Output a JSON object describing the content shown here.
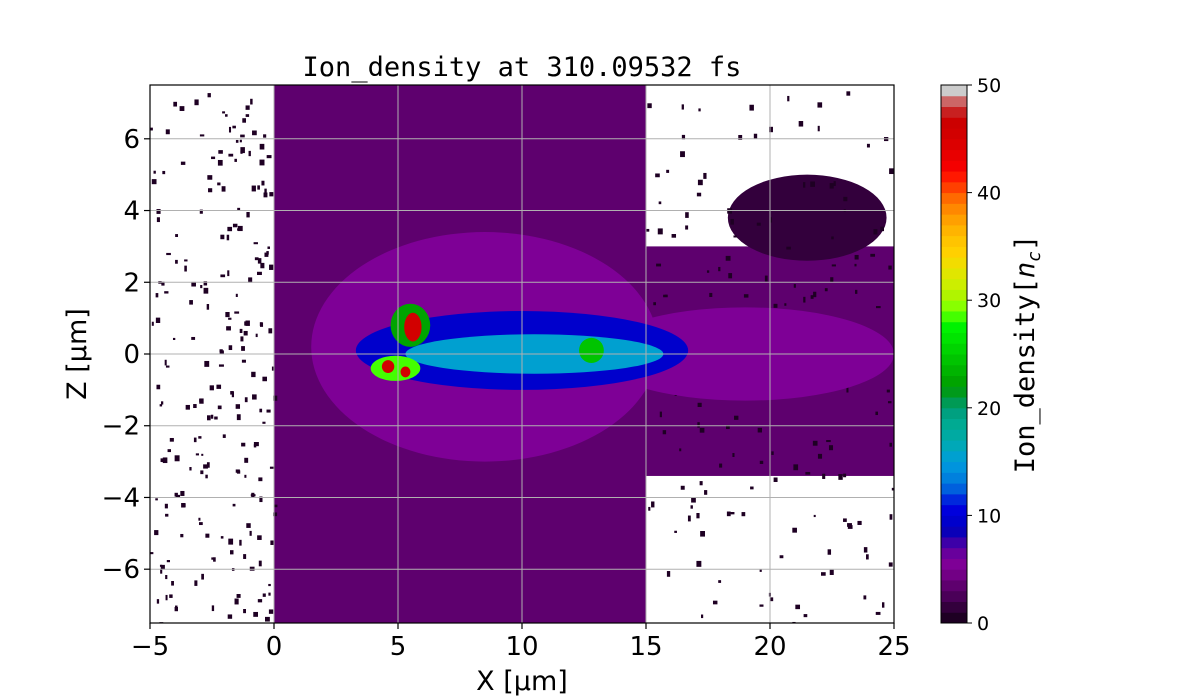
{
  "chart_data": {
    "type": "heatmap",
    "title": "Ion_density at 310.09532 fs",
    "xlabel": "X [μm]",
    "ylabel": "Z [μm]",
    "xlim": [
      -5,
      25
    ],
    "ylim": [
      -7.5,
      7.5
    ],
    "x_ticks": [
      -5,
      0,
      5,
      10,
      15,
      20,
      25
    ],
    "x_tick_labels": [
      "−5",
      "0",
      "5",
      "10",
      "15",
      "20",
      "25"
    ],
    "y_ticks": [
      -6,
      -4,
      -2,
      0,
      2,
      4,
      6
    ],
    "y_tick_labels": [
      "−6",
      "−4",
      "−2",
      "0",
      "2",
      "4",
      "6"
    ],
    "grid": true,
    "colorbar": {
      "label": "Ion_density[n_c]",
      "range": [
        0,
        50
      ],
      "ticks": [
        0,
        10,
        20,
        30,
        40,
        50
      ],
      "tick_labels": [
        "0",
        "10",
        "20",
        "30",
        "40",
        "50"
      ],
      "levels": [
        {
          "min": 0,
          "max": 1,
          "color": "#1e0023"
        },
        {
          "min": 1,
          "max": 2,
          "color": "#33003c"
        },
        {
          "min": 2,
          "max": 3,
          "color": "#4a0058"
        },
        {
          "min": 3,
          "max": 4,
          "color": "#5e006e"
        },
        {
          "min": 4,
          "max": 5,
          "color": "#720085"
        },
        {
          "min": 5,
          "max": 6,
          "color": "#7e0096"
        },
        {
          "min": 6,
          "max": 7,
          "color": "#68009c"
        },
        {
          "min": 7,
          "max": 8,
          "color": "#3d00a8"
        },
        {
          "min": 8,
          "max": 9,
          "color": "#0a00b8"
        },
        {
          "min": 9,
          "max": 10,
          "color": "#0000cc"
        },
        {
          "min": 10,
          "max": 11,
          "color": "#0000dc"
        },
        {
          "min": 11,
          "max": 12,
          "color": "#0028dd"
        },
        {
          "min": 12,
          "max": 13,
          "color": "#0060dd"
        },
        {
          "min": 13,
          "max": 14,
          "color": "#0080dd"
        },
        {
          "min": 14,
          "max": 15,
          "color": "#0094dd"
        },
        {
          "min": 15,
          "max": 16,
          "color": "#00a0d0"
        },
        {
          "min": 16,
          "max": 17,
          "color": "#00a8b8"
        },
        {
          "min": 17,
          "max": 18,
          "color": "#00aaa2"
        },
        {
          "min": 18,
          "max": 19,
          "color": "#00aa92"
        },
        {
          "min": 19,
          "max": 20,
          "color": "#00a080"
        },
        {
          "min": 20,
          "max": 21,
          "color": "#009a55"
        },
        {
          "min": 21,
          "max": 22,
          "color": "#009a1a"
        },
        {
          "min": 22,
          "max": 23,
          "color": "#00a400"
        },
        {
          "min": 23,
          "max": 24,
          "color": "#00b400"
        },
        {
          "min": 24,
          "max": 25,
          "color": "#00c400"
        },
        {
          "min": 25,
          "max": 26,
          "color": "#00d400"
        },
        {
          "min": 26,
          "max": 27,
          "color": "#00e400"
        },
        {
          "min": 27,
          "max": 28,
          "color": "#00f200"
        },
        {
          "min": 28,
          "max": 29,
          "color": "#44ff00"
        },
        {
          "min": 29,
          "max": 30,
          "color": "#88ff00"
        },
        {
          "min": 30,
          "max": 31,
          "color": "#b0f400"
        },
        {
          "min": 31,
          "max": 32,
          "color": "#ccee00"
        },
        {
          "min": 32,
          "max": 33,
          "color": "#e0e600"
        },
        {
          "min": 33,
          "max": 34,
          "color": "#f2dc00"
        },
        {
          "min": 34,
          "max": 35,
          "color": "#ffd000"
        },
        {
          "min": 35,
          "max": 36,
          "color": "#ffc400"
        },
        {
          "min": 36,
          "max": 37,
          "color": "#ffb400"
        },
        {
          "min": 37,
          "max": 38,
          "color": "#ffa000"
        },
        {
          "min": 38,
          "max": 39,
          "color": "#ff8800"
        },
        {
          "min": 39,
          "max": 40,
          "color": "#ff6a00"
        },
        {
          "min": 40,
          "max": 41,
          "color": "#ff4000"
        },
        {
          "min": 41,
          "max": 42,
          "color": "#ff1800"
        },
        {
          "min": 42,
          "max": 43,
          "color": "#f40000"
        },
        {
          "min": 43,
          "max": 44,
          "color": "#e80000"
        },
        {
          "min": 44,
          "max": 45,
          "color": "#dc0000"
        },
        {
          "min": 45,
          "max": 46,
          "color": "#d20000"
        },
        {
          "min": 46,
          "max": 47,
          "color": "#cc0000"
        },
        {
          "min": 47,
          "max": 48,
          "color": "#c82020"
        },
        {
          "min": 48,
          "max": 49,
          "color": "#cc6666"
        },
        {
          "min": 49,
          "max": 50,
          "color": "#cccccc"
        }
      ]
    },
    "regions": [
      {
        "name": "left-column",
        "shape": "rect",
        "x": [
          0,
          15
        ],
        "z": [
          -7.5,
          7.5
        ],
        "level": 3,
        "dots": 0
      },
      {
        "name": "right-band",
        "shape": "rect",
        "x": [
          15,
          25
        ],
        "z": [
          -3.4,
          3.0
        ],
        "level": 3,
        "dots": 0
      },
      {
        "name": "upper-right-lobe",
        "shape": "ellipse",
        "cx": 21.5,
        "cz": 3.8,
        "rx": 3.2,
        "rz": 1.2,
        "level": 1,
        "dots": 0
      },
      {
        "name": "left-scatter",
        "shape": "scatter",
        "x": [
          -5,
          0
        ],
        "z": [
          -7.5,
          7.5
        ],
        "level": 0,
        "dots": 220
      },
      {
        "name": "right-scatter",
        "shape": "scatter",
        "x": [
          15,
          25
        ],
        "z": [
          -7.5,
          7.5
        ],
        "level": 0,
        "dots": 160
      },
      {
        "name": "plasma-halo",
        "shape": "ellipse",
        "cx": 8.5,
        "cz": 0.2,
        "rx": 7.0,
        "rz": 3.2,
        "level": 5,
        "dots": 0
      },
      {
        "name": "tail-core",
        "shape": "ellipse",
        "cx": 19.0,
        "cz": 0.0,
        "rx": 6.0,
        "rz": 1.3,
        "level": 5,
        "dots": 0
      },
      {
        "name": "blue-channel",
        "shape": "ellipse",
        "cx": 10.0,
        "cz": 0.1,
        "rx": 6.7,
        "rz": 1.1,
        "level": 9,
        "dots": 0
      },
      {
        "name": "cyan-core",
        "shape": "ellipse",
        "cx": 10.5,
        "cz": 0.0,
        "rx": 5.2,
        "rz": 0.55,
        "level": 15,
        "dots": 0
      },
      {
        "name": "green-spot-right",
        "shape": "ellipse",
        "cx": 12.8,
        "cz": 0.1,
        "rx": 0.5,
        "rz": 0.35,
        "level": 24,
        "dots": 0
      },
      {
        "name": "upper-blob",
        "shape": "ellipse",
        "cx": 5.5,
        "cz": 0.8,
        "rx": 0.8,
        "rz": 0.6,
        "level": 22,
        "dots": 0
      },
      {
        "name": "upper-hot",
        "shape": "ellipse",
        "cx": 5.6,
        "cz": 0.75,
        "rx": 0.35,
        "rz": 0.4,
        "level": 45,
        "dots": 0
      },
      {
        "name": "lower-blob",
        "shape": "ellipse",
        "cx": 4.9,
        "cz": -0.4,
        "rx": 1.0,
        "rz": 0.35,
        "level": 28,
        "dots": 0
      },
      {
        "name": "lower-hot-left",
        "shape": "ellipse",
        "cx": 4.6,
        "cz": -0.35,
        "rx": 0.25,
        "rz": 0.18,
        "level": 45,
        "dots": 0
      },
      {
        "name": "lower-hot-right",
        "shape": "ellipse",
        "cx": 5.3,
        "cz": -0.5,
        "rx": 0.2,
        "rz": 0.15,
        "level": 45,
        "dots": 0
      }
    ]
  }
}
